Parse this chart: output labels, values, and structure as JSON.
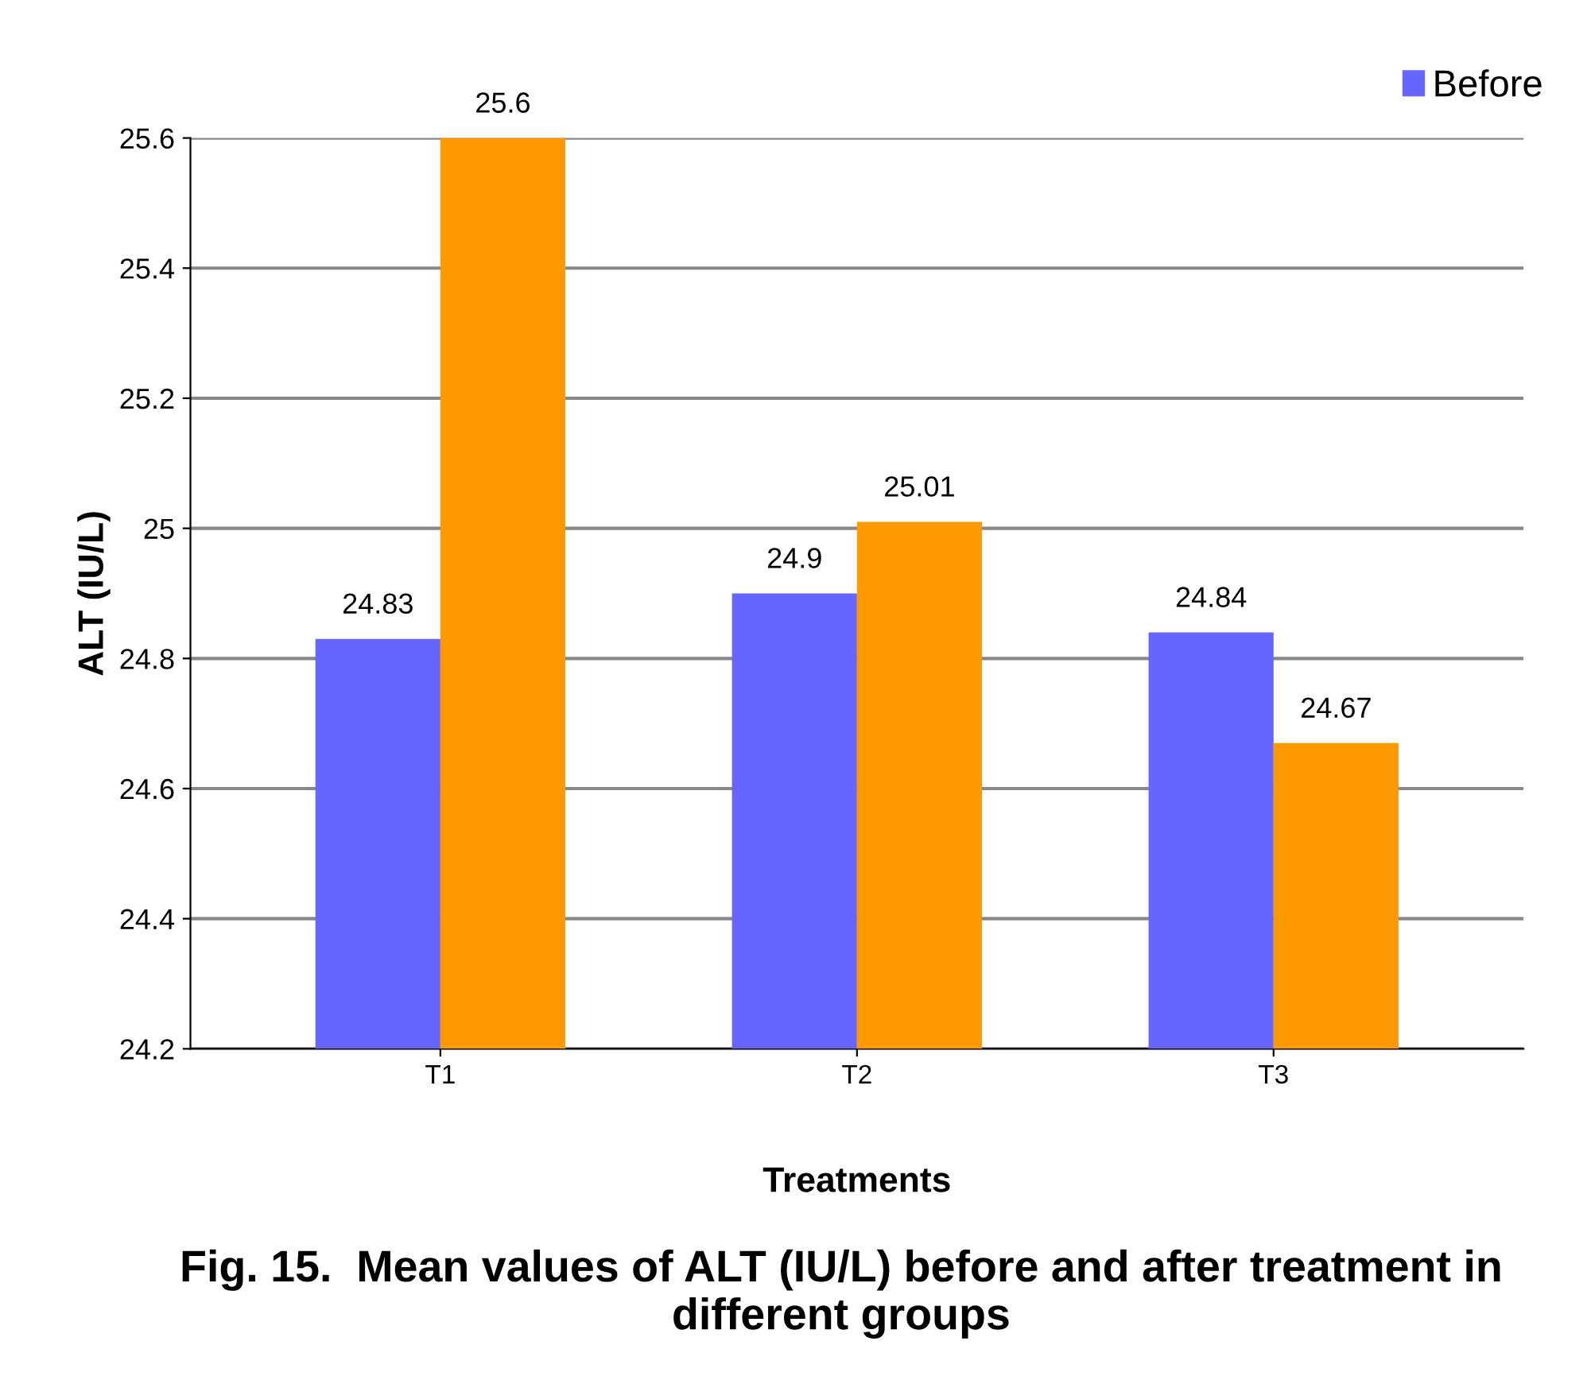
{
  "chart_data": {
    "type": "bar",
    "title": "Fig. 15.  Mean values of ALT (IU/L) before and after treatment in different groups",
    "xlabel": "Treatments",
    "ylabel": "ALT (IU/L)",
    "categories": [
      "T1",
      "T2",
      "T3"
    ],
    "series": [
      {
        "name": "Before",
        "color": "#6666ff",
        "values": [
          24.83,
          24.9,
          24.84
        ]
      },
      {
        "color": "#ff9900",
        "values": [
          25.6,
          25.01,
          24.67
        ]
      }
    ],
    "ylim": [
      24.2,
      25.6
    ],
    "yticks": [
      24.2,
      24.4,
      24.6,
      24.8,
      25,
      25.2,
      25.4,
      25.6
    ],
    "grid": "y",
    "legend": "top right",
    "data_labels": true
  }
}
